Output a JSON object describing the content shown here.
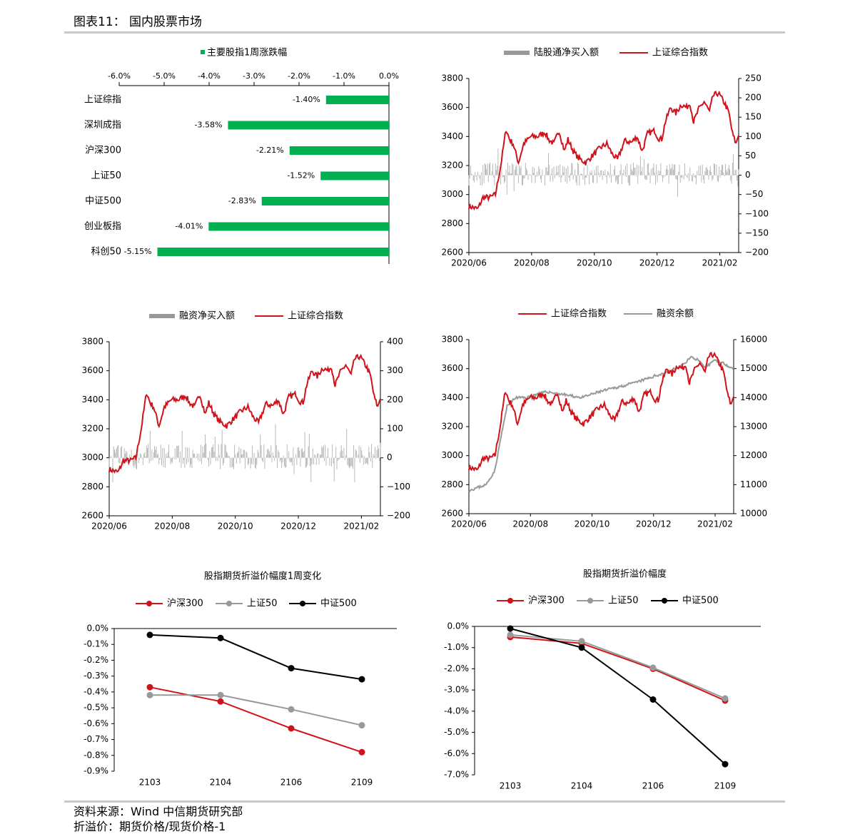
{
  "header": {
    "title": "图表11： 国内股票市场"
  },
  "footer": {
    "source": "资料来源：Wind 中信期货研究部",
    "note": "折溢价：期货价格/现货价格-1"
  },
  "colors": {
    "red": "#d0121b",
    "gray": "#999999",
    "green": "#00b050",
    "black": "#000000"
  },
  "chart_data": [
    {
      "id": "weekly-change",
      "type": "bar",
      "orientation": "horizontal",
      "legend": "主要股指1周涨跌幅",
      "categories": [
        "上证综指",
        "深圳成指",
        "沪深300",
        "上证50",
        "中证500",
        "创业板指",
        "科创50"
      ],
      "values": [
        -1.4,
        -3.58,
        -2.21,
        -1.52,
        -2.83,
        -4.01,
        -5.15
      ],
      "value_labels": [
        "-1.40%",
        "-3.58%",
        "-2.21%",
        "-1.52%",
        "-2.83%",
        "-4.01%",
        "-5.15%"
      ],
      "xlim": [
        -6.0,
        0.0
      ],
      "xticks": [
        "-6.0%",
        "-5.0%",
        "-4.0%",
        "-3.0%",
        "-2.0%",
        "-1.0%",
        "0.0%"
      ],
      "color": "#00b050"
    },
    {
      "id": "northbound",
      "type": "bar+line",
      "legend": [
        "陆股通净买入额",
        "上证综合指数"
      ],
      "x_ticks": [
        "2020/06",
        "2020/08",
        "2020/10",
        "2020/12",
        "2021/02"
      ],
      "y_left": {
        "range": [
          2600,
          3800
        ],
        "ticks": [
          "3800",
          "3600",
          "3400",
          "3200",
          "3000",
          "2800",
          "2600"
        ]
      },
      "y_right": {
        "range": [
          -200,
          250
        ],
        "ticks": [
          "250",
          "200",
          "150",
          "100",
          "50",
          "0",
          "−50",
          "−100",
          "−150",
          "−200"
        ]
      }
    },
    {
      "id": "margin-buy",
      "type": "bar+line",
      "legend": [
        "融资净买入额",
        "上证综合指数"
      ],
      "x_ticks": [
        "2020/06",
        "2020/08",
        "2020/10",
        "2020/12",
        "2021/02"
      ],
      "y_left": {
        "range": [
          2600,
          3800
        ],
        "ticks": [
          "3800",
          "3600",
          "3400",
          "3200",
          "3000",
          "2800",
          "2600"
        ]
      },
      "y_right": {
        "range": [
          -200,
          400
        ],
        "ticks": [
          "400",
          "300",
          "200",
          "100",
          "0",
          "−100",
          "−200"
        ]
      }
    },
    {
      "id": "margin-balance",
      "type": "line",
      "legend": [
        "上证综合指数",
        "融资余额"
      ],
      "x_ticks": [
        "2020/06",
        "2020/08",
        "2020/10",
        "2020/12",
        "2021/02"
      ],
      "y_left": {
        "range": [
          2600,
          3800
        ],
        "ticks": [
          "3800",
          "3600",
          "3400",
          "3200",
          "3000",
          "2800",
          "2600"
        ]
      },
      "y_right": {
        "range": [
          10000,
          16000
        ],
        "ticks": [
          "16000",
          "15000",
          "14000",
          "13000",
          "12000",
          "11000",
          "10000"
        ]
      }
    },
    {
      "id": "basis-change",
      "type": "line",
      "title": "股指期货折溢价幅度1周变化",
      "categories": [
        "2103",
        "2104",
        "2106",
        "2109"
      ],
      "ylim": [
        -0.9,
        0.0
      ],
      "yticks": [
        "0.0%",
        "-0.1%",
        "-0.2%",
        "-0.3%",
        "-0.4%",
        "-0.5%",
        "-0.6%",
        "-0.7%",
        "-0.8%",
        "-0.9%"
      ],
      "series": [
        {
          "name": "沪深300",
          "color": "#d0121b",
          "values": [
            -0.37,
            -0.46,
            -0.63,
            -0.78
          ]
        },
        {
          "name": "上证50",
          "color": "#999999",
          "values": [
            -0.42,
            -0.42,
            -0.51,
            -0.61
          ]
        },
        {
          "name": "中证500",
          "color": "#000000",
          "values": [
            -0.04,
            -0.06,
            -0.25,
            -0.32
          ]
        }
      ]
    },
    {
      "id": "basis-level",
      "type": "line",
      "title": "股指期货折溢价幅度",
      "categories": [
        "2103",
        "2104",
        "2106",
        "2109"
      ],
      "ylim": [
        -7.0,
        0.0
      ],
      "yticks": [
        "0.0%",
        "-1.0%",
        "-2.0%",
        "-3.0%",
        "-4.0%",
        "-5.0%",
        "-6.0%",
        "-7.0%"
      ],
      "series": [
        {
          "name": "沪深300",
          "color": "#d0121b",
          "values": [
            -0.5,
            -0.8,
            -2.0,
            -3.5
          ]
        },
        {
          "name": "上证50",
          "color": "#999999",
          "values": [
            -0.4,
            -0.7,
            -1.95,
            -3.4
          ]
        },
        {
          "name": "中证500",
          "color": "#000000",
          "values": [
            -0.1,
            -1.0,
            -3.45,
            -6.5
          ]
        }
      ]
    }
  ]
}
